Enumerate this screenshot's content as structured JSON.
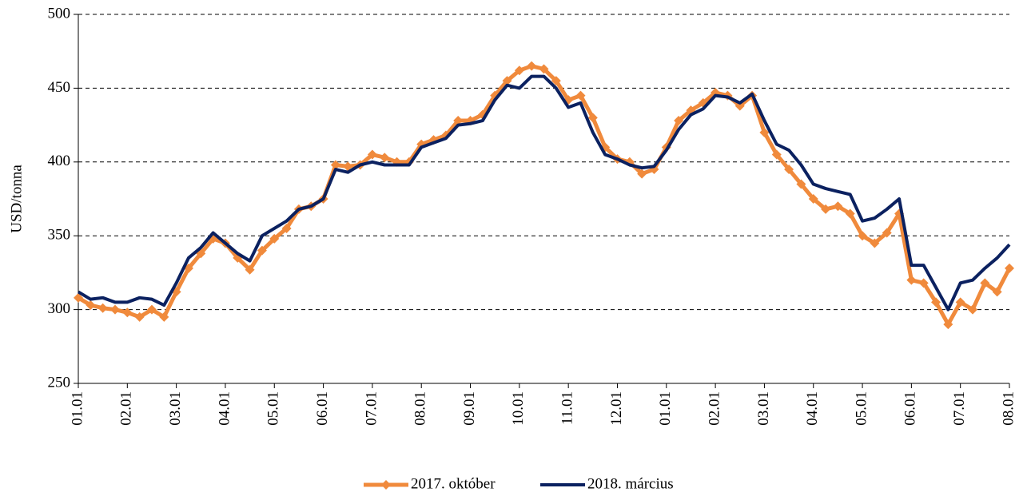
{
  "chart_data": {
    "type": "line",
    "y_label": "USD/tonna",
    "categories": [
      "01.01",
      null,
      null,
      null,
      "02.01",
      null,
      null,
      null,
      "03.01",
      null,
      null,
      null,
      "04.01",
      null,
      null,
      null,
      "05.01",
      null,
      null,
      null,
      "06.01",
      null,
      null,
      null,
      "07.01",
      null,
      null,
      null,
      "08.01",
      null,
      null,
      null,
      "09.01",
      null,
      null,
      null,
      "10.01",
      null,
      null,
      null,
      "11.01",
      null,
      null,
      null,
      "12.01",
      null,
      null,
      null,
      "01.01",
      null,
      null,
      null,
      "02.01",
      null,
      null,
      null,
      "03.01",
      null,
      null,
      null,
      "04.01",
      null,
      null,
      null,
      "05.01",
      null,
      null,
      null,
      "06.01",
      null,
      null,
      null,
      "07.01",
      null,
      null,
      null,
      "08.01"
    ],
    "series": [
      {
        "name": "2017. október",
        "color": "#f08a3c",
        "marker": "diamond",
        "values": [
          308,
          303,
          301,
          300,
          298,
          295,
          300,
          295,
          312,
          328,
          338,
          348,
          345,
          335,
          327,
          340,
          348,
          355,
          368,
          370,
          375,
          398,
          397,
          398,
          405,
          403,
          400,
          400,
          412,
          415,
          418,
          428,
          428,
          432,
          445,
          455,
          462,
          465,
          463,
          455,
          442,
          445,
          430,
          410,
          402,
          400,
          392,
          395,
          410,
          428,
          435,
          440,
          447,
          445,
          438,
          445,
          420,
          405,
          395,
          385,
          375,
          368,
          370,
          365,
          350,
          345,
          352,
          365,
          320,
          318,
          305,
          290,
          305,
          300,
          318,
          312,
          328
        ]
      },
      {
        "name": "2018. március",
        "color": "#0b2160",
        "values": [
          312,
          307,
          308,
          305,
          305,
          308,
          307,
          303,
          318,
          335,
          342,
          352,
          345,
          338,
          333,
          350,
          355,
          360,
          368,
          370,
          375,
          395,
          393,
          398,
          400,
          398,
          398,
          398,
          410,
          413,
          416,
          425,
          426,
          428,
          442,
          452,
          450,
          458,
          458,
          450,
          437,
          440,
          420,
          405,
          402,
          398,
          396,
          397,
          408,
          422,
          432,
          436,
          445,
          444,
          440,
          446,
          428,
          412,
          408,
          398,
          385,
          382,
          380,
          378,
          360,
          362,
          368,
          375,
          330,
          330,
          315,
          300,
          318,
          320,
          328,
          335,
          344
        ]
      }
    ],
    "ylim": [
      250,
      500
    ],
    "yticks": [
      250,
      300,
      350,
      400,
      450,
      500
    ],
    "grid": true,
    "legend": "bottom"
  }
}
